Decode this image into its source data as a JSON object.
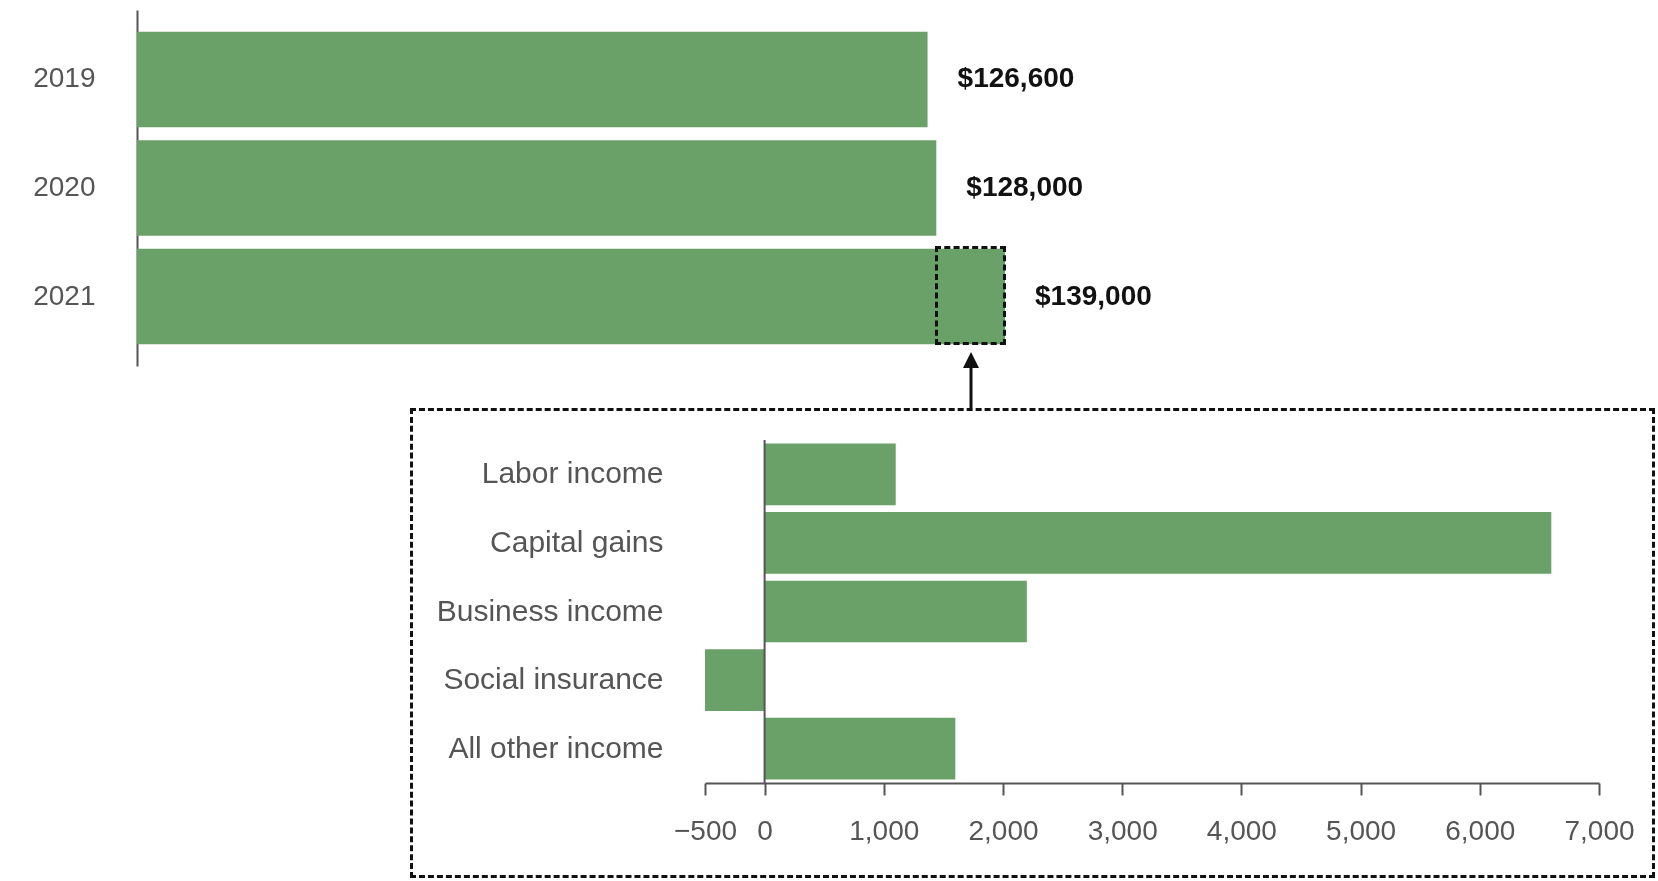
{
  "chart_data": [
    {
      "type": "bar",
      "orientation": "horizontal",
      "categories": [
        "2019",
        "2020",
        "2021"
      ],
      "values": [
        126600,
        128000,
        139000
      ],
      "color": "#6aa169",
      "value_labels": [
        "$126,600",
        "$128,000",
        "$139,000"
      ]
    },
    {
      "type": "bar",
      "orientation": "horizontal",
      "categories": [
        "Labor income",
        "Capital gains",
        "Business income",
        "Social insurance",
        "All other income"
      ],
      "values": [
        1100,
        6600,
        2200,
        -500,
        1600
      ],
      "color": "#6aa169",
      "xlim": [
        -500,
        7000
      ],
      "xticks": [
        {
          "value": -500,
          "label": "−500"
        },
        0,
        {
          "value": 1000,
          "label": "1,000"
        },
        {
          "value": 2000,
          "label": "2,000"
        },
        {
          "value": 3000,
          "label": "3,000"
        },
        {
          "value": 4000,
          "label": "4,000"
        },
        {
          "value": 5000,
          "label": "5,000"
        },
        {
          "value": 6000,
          "label": "6,000"
        },
        {
          "value": 7000,
          "label": "7,000"
        }
      ]
    }
  ]
}
